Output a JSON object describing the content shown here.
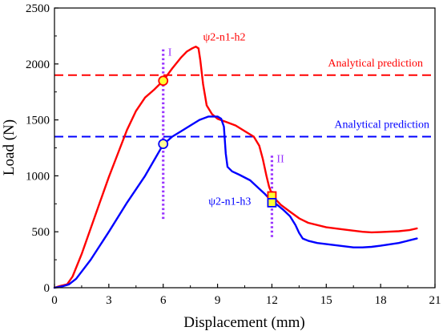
{
  "chart_data": {
    "type": "line",
    "xlabel": "Displacement (mm)",
    "ylabel": "Load (N)",
    "xlim": [
      0,
      21
    ],
    "ylim": [
      0,
      2500
    ],
    "xticks": [
      0,
      3,
      6,
      9,
      12,
      15,
      18,
      21
    ],
    "yticks": [
      0,
      500,
      1000,
      1500,
      2000,
      2500
    ],
    "grid": false,
    "legend": "none",
    "series": [
      {
        "name": "ψ2-n1-h2",
        "color": "#ff0000",
        "x": [
          0,
          0.3,
          0.7,
          1.0,
          1.5,
          2.0,
          2.5,
          3.0,
          3.5,
          4.0,
          4.5,
          5.0,
          5.5,
          6.0,
          6.5,
          7.0,
          7.3,
          7.6,
          7.8,
          7.95,
          8.05,
          8.2,
          8.4,
          8.7,
          9.0,
          9.5,
          10.0,
          10.5,
          11.0,
          11.3,
          11.5,
          11.7,
          11.85,
          12.0,
          12.2,
          12.5,
          13.0,
          13.5,
          14.0,
          15.0,
          16.0,
          17.0,
          17.5,
          18.0,
          19.0,
          19.6,
          20.0
        ],
        "y": [
          0,
          15,
          30,
          100,
          300,
          530,
          760,
          990,
          1200,
          1410,
          1580,
          1700,
          1770,
          1850,
          1960,
          2060,
          2110,
          2140,
          2155,
          2140,
          2030,
          1820,
          1630,
          1550,
          1510,
          1480,
          1450,
          1400,
          1350,
          1270,
          1150,
          1000,
          900,
          840,
          790,
          740,
          680,
          620,
          580,
          540,
          520,
          500,
          495,
          497,
          505,
          515,
          530
        ]
      },
      {
        "name": "ψ2-n1-h3",
        "color": "#0000ff",
        "x": [
          0,
          0.5,
          0.8,
          1.2,
          2.0,
          3.0,
          4.0,
          5.0,
          5.5,
          6.0,
          6.5,
          7.0,
          7.5,
          8.0,
          8.5,
          9.0,
          9.2,
          9.35,
          9.45,
          9.55,
          9.8,
          10.2,
          10.8,
          11.2,
          11.6,
          12.0,
          12.3,
          12.6,
          13.0,
          13.3,
          13.5,
          13.7,
          14.0,
          14.5,
          15.0,
          16.0,
          16.5,
          17.0,
          17.5,
          18.0,
          19.0,
          20.0
        ],
        "y": [
          0,
          15,
          30,
          80,
          250,
          500,
          760,
          1000,
          1140,
          1280,
          1350,
          1400,
          1450,
          1500,
          1530,
          1530,
          1510,
          1440,
          1200,
          1080,
          1040,
          1010,
          960,
          900,
          840,
          770,
          740,
          700,
          640,
          560,
          490,
          440,
          420,
          400,
          390,
          370,
          360,
          360,
          365,
          375,
          400,
          440
        ]
      }
    ],
    "reference_lines": [
      {
        "orientation": "horizontal",
        "value": 1900,
        "color": "#ff0000",
        "style": "dashed",
        "label": "Analytical prediction"
      },
      {
        "orientation": "horizontal",
        "value": 1350,
        "color": "#0000ff",
        "style": "dashed",
        "label": "Analytical prediction"
      },
      {
        "orientation": "vertical",
        "value": 6,
        "color": "#9933ff",
        "style": "dotted",
        "label": "I"
      },
      {
        "orientation": "vertical",
        "value": 12,
        "color": "#9933ff",
        "style": "dotted",
        "label": "II"
      }
    ],
    "markers": [
      {
        "shape": "circle",
        "x": 6,
        "y": 1850,
        "stroke": "#ff0000",
        "fill": "#ffff33"
      },
      {
        "shape": "circle",
        "x": 6,
        "y": 1285,
        "stroke": "#0000ff",
        "fill": "#ffff99"
      },
      {
        "shape": "square",
        "x": 12,
        "y": 820,
        "stroke": "#ff0000",
        "fill": "#ffff33"
      },
      {
        "shape": "square",
        "x": 12,
        "y": 760,
        "stroke": "#0000ff",
        "fill": "#ffff33"
      }
    ],
    "annotations": [
      {
        "text": "ψ2-n1-h2",
        "color": "#ff0000",
        "x": 8.2,
        "y": 2210
      },
      {
        "text": "ψ2-n1-h3",
        "color": "#0000ff",
        "x": 8.5,
        "y": 740
      }
    ]
  }
}
